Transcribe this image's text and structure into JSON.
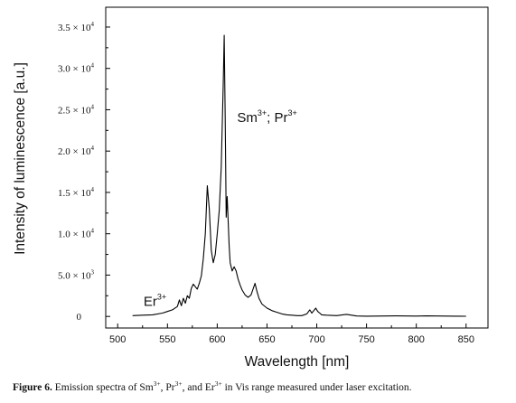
{
  "chart_data": {
    "type": "line",
    "xlabel": "Wavelength [nm]",
    "ylabel": "Intensity of luminescence [a.u.]",
    "xlim": [
      488,
      872
    ],
    "ylim": [
      -1400,
      37400
    ],
    "x_ticks": [
      500,
      550,
      600,
      650,
      700,
      750,
      800,
      850
    ],
    "y_ticks": [
      {
        "value": 0,
        "mantissa": "0",
        "times": "",
        "base": "",
        "exponent": ""
      },
      {
        "value": 5000,
        "mantissa": "5.0",
        "times": "×",
        "base": "10",
        "exponent": "3"
      },
      {
        "value": 10000,
        "mantissa": "1.0",
        "times": "×",
        "base": "10",
        "exponent": "4"
      },
      {
        "value": 15000,
        "mantissa": "1.5",
        "times": "×",
        "base": "10",
        "exponent": "4"
      },
      {
        "value": 20000,
        "mantissa": "2.0",
        "times": "×",
        "base": "10",
        "exponent": "4"
      },
      {
        "value": 25000,
        "mantissa": "2.5",
        "times": "×",
        "base": "10",
        "exponent": "4"
      },
      {
        "value": 30000,
        "mantissa": "3.0",
        "times": "×",
        "base": "10",
        "exponent": "4"
      },
      {
        "value": 35000,
        "mantissa": "3.5",
        "times": "×",
        "base": "10",
        "exponent": "4"
      }
    ],
    "series": [
      {
        "color": "#000000",
        "x": [
          515,
          525,
          535,
          545,
          550,
          555,
          560,
          562,
          564,
          566,
          568,
          570,
          572,
          574,
          576,
          578,
          580,
          582,
          584,
          586,
          588,
          590,
          592,
          594,
          596,
          598,
          600,
          602,
          604,
          606,
          607,
          608,
          609,
          610,
          611,
          612,
          613,
          615,
          617,
          619,
          621,
          623,
          625,
          628,
          631,
          634,
          636,
          638,
          640,
          642,
          645,
          650,
          655,
          660,
          665,
          670,
          675,
          680,
          685,
          690,
          693,
          695,
          697,
          699,
          701,
          703,
          705,
          710,
          720,
          730,
          740,
          750,
          760,
          770,
          780,
          790,
          800,
          810,
          820,
          830,
          840,
          850
        ],
        "y": [
          100,
          150,
          200,
          400,
          600,
          800,
          1200,
          2000,
          1300,
          2200,
          1600,
          2500,
          2200,
          3400,
          3900,
          3600,
          3300,
          4000,
          4900,
          7000,
          10000,
          15800,
          13000,
          8000,
          6500,
          7500,
          10000,
          12800,
          18000,
          28000,
          34000,
          24000,
          12000,
          14500,
          11500,
          8500,
          6500,
          5500,
          6000,
          5500,
          4500,
          3800,
          3200,
          2600,
          2300,
          2600,
          3300,
          4000,
          3000,
          2200,
          1500,
          1000,
          700,
          500,
          300,
          200,
          150,
          100,
          100,
          300,
          800,
          400,
          700,
          1000,
          600,
          400,
          200,
          150,
          100,
          250,
          50,
          30,
          40,
          50,
          60,
          50,
          40,
          60,
          50,
          40,
          30,
          20
        ]
      }
    ],
    "annotations": [
      {
        "base": "Sm",
        "sup": "3+",
        "sep": "; ",
        "base2": "Pr",
        "sup2": "3+",
        "x": 620,
        "y": 23500
      },
      {
        "base": "Er",
        "sup": "3+",
        "x": 526,
        "y": 1300
      }
    ]
  },
  "caption": {
    "label": "Figure 6.",
    "text_parts": [
      "Emission spectra of Sm",
      "3+",
      ", Pr",
      "3+",
      ", and Er",
      "3+",
      " in Vis range measured under laser excitation."
    ]
  }
}
